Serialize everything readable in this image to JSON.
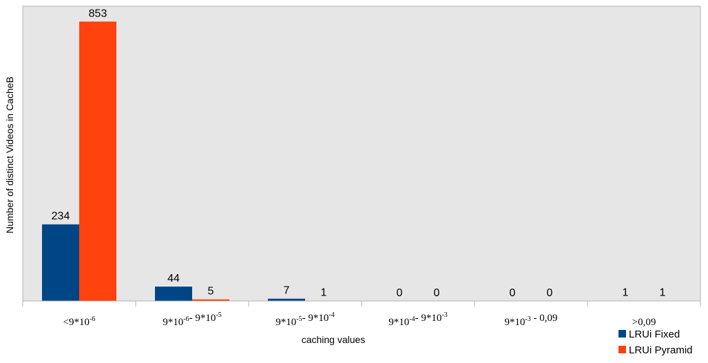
{
  "chart_data": {
    "type": "bar",
    "xlabel": "caching values",
    "ylabel": "Number of distinct Videos in CacheB",
    "categories": [
      [
        {
          "t": "<9*10"
        },
        {
          "t": "-6",
          "sup": true
        }
      ],
      [
        {
          "t": "9*10"
        },
        {
          "t": "-6",
          "sup": true
        },
        {
          "t": "- 9*10"
        },
        {
          "t": "-5",
          "sup": true
        }
      ],
      [
        {
          "t": "9*10"
        },
        {
          "t": "-5",
          "sup": true
        },
        {
          "t": "- 9*10"
        },
        {
          "t": "-4",
          "sup": true
        }
      ],
      [
        {
          "t": "9*10"
        },
        {
          "t": "-4",
          "sup": true
        },
        {
          "t": "- 9*10"
        },
        {
          "t": "-3",
          "sup": true
        }
      ],
      [
        {
          "t": "9*10"
        },
        {
          "t": "-3",
          "sup": true
        },
        {
          "t": " - 0,09"
        }
      ],
      [
        {
          "t": ">0,09"
        }
      ]
    ],
    "series": [
      {
        "name": "LRUi Fixed",
        "color": "#004586",
        "values": [
          234,
          44,
          7,
          0,
          0,
          1
        ]
      },
      {
        "name": "LRUi Pyramid",
        "color": "#ff420e",
        "values": [
          853,
          5,
          1,
          0,
          0,
          1
        ]
      }
    ],
    "ylim": [
      0,
      900
    ],
    "grid": false,
    "legend_position": "bottom-right",
    "plot_background": "#e6e6e6",
    "plot_border": "#b3b3b3"
  }
}
